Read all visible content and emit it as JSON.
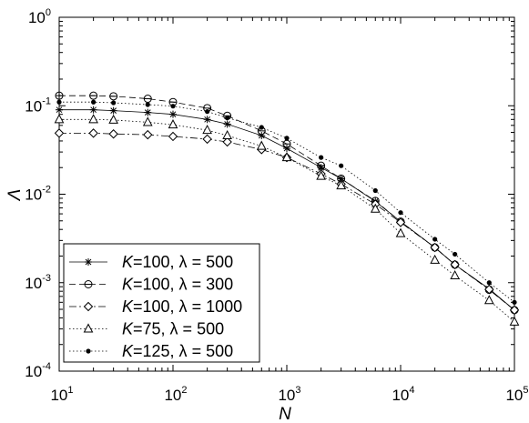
{
  "chart_data": {
    "type": "line",
    "xlabel": "N",
    "ylabel": "Λ",
    "x_scale": "log",
    "y_scale": "log",
    "xlim": [
      10,
      100000
    ],
    "ylim": [
      0.0001,
      1
    ],
    "grid": false,
    "legend_position": "bottom-left",
    "x_ticks": [
      {
        "base": "10",
        "exp": "1"
      },
      {
        "base": "10",
        "exp": "2"
      },
      {
        "base": "10",
        "exp": "3"
      },
      {
        "base": "10",
        "exp": "4"
      },
      {
        "base": "10",
        "exp": "5"
      }
    ],
    "y_ticks": [
      {
        "base": "10",
        "exp": "0"
      },
      {
        "base": "10",
        "exp": "-1"
      },
      {
        "base": "10",
        "exp": "-2"
      },
      {
        "base": "10",
        "exp": "-3"
      },
      {
        "base": "10",
        "exp": "-4"
      }
    ],
    "series": [
      {
        "name_italic": "K",
        "name_rest": "=100, λ = 500",
        "line_style": "solid",
        "marker": "asterisk",
        "x": [
          10,
          20,
          30,
          60,
          100,
          200,
          300,
          600,
          1000,
          2000,
          3000,
          6000,
          10000,
          20000,
          30000,
          60000,
          100000
        ],
        "y": [
          0.09,
          0.09,
          0.088,
          0.084,
          0.08,
          0.07,
          0.062,
          0.046,
          0.033,
          0.02,
          0.015,
          0.0083,
          0.0049,
          0.0025,
          0.0016,
          0.00085,
          0.00049
        ]
      },
      {
        "name_italic": "K",
        "name_rest": "=100, λ = 300",
        "line_style": "dashed",
        "marker": "circle-line",
        "x": [
          10,
          20,
          30,
          60,
          100,
          200,
          300,
          600,
          1000,
          2000,
          3000,
          6000,
          10000,
          20000,
          30000,
          60000,
          100000
        ],
        "y": [
          0.13,
          0.13,
          0.128,
          0.12,
          0.11,
          0.094,
          0.077,
          0.052,
          0.037,
          0.021,
          0.015,
          0.0084,
          0.0049,
          0.0025,
          0.0016,
          0.00083,
          0.00049
        ]
      },
      {
        "name_italic": "K",
        "name_rest": "=100, λ = 1000",
        "line_style": "dash-dot",
        "marker": "diamond",
        "x": [
          10,
          20,
          30,
          60,
          100,
          200,
          300,
          600,
          1000,
          2000,
          3000,
          6000,
          10000,
          20000,
          30000,
          60000,
          100000
        ],
        "y": [
          0.049,
          0.049,
          0.048,
          0.047,
          0.045,
          0.042,
          0.039,
          0.032,
          0.026,
          0.017,
          0.013,
          0.0077,
          0.0048,
          0.0025,
          0.0016,
          0.00084,
          0.00049
        ]
      },
      {
        "name_italic": "K",
        "name_rest": "=75, λ = 500",
        "line_style": "dotted",
        "marker": "triangle",
        "x": [
          10,
          20,
          30,
          60,
          100,
          200,
          300,
          600,
          1000,
          2000,
          3000,
          6000,
          10000,
          20000,
          30000,
          60000,
          100000
        ],
        "y": [
          0.07,
          0.07,
          0.069,
          0.065,
          0.061,
          0.053,
          0.046,
          0.035,
          0.026,
          0.016,
          0.0125,
          0.0068,
          0.0036,
          0.0018,
          0.0012,
          0.00063,
          0.00036
        ]
      },
      {
        "name_italic": "K",
        "name_rest": "=125, λ = 500",
        "line_style": "dotted",
        "marker": "dot",
        "x": [
          10,
          20,
          30,
          60,
          100,
          200,
          300,
          600,
          1000,
          2000,
          3000,
          6000,
          10000,
          20000,
          30000,
          60000,
          100000
        ],
        "y": [
          0.11,
          0.11,
          0.108,
          0.103,
          0.099,
          0.086,
          0.073,
          0.057,
          0.043,
          0.026,
          0.021,
          0.011,
          0.0062,
          0.0031,
          0.0021,
          0.001,
          0.0006
        ]
      }
    ]
  }
}
